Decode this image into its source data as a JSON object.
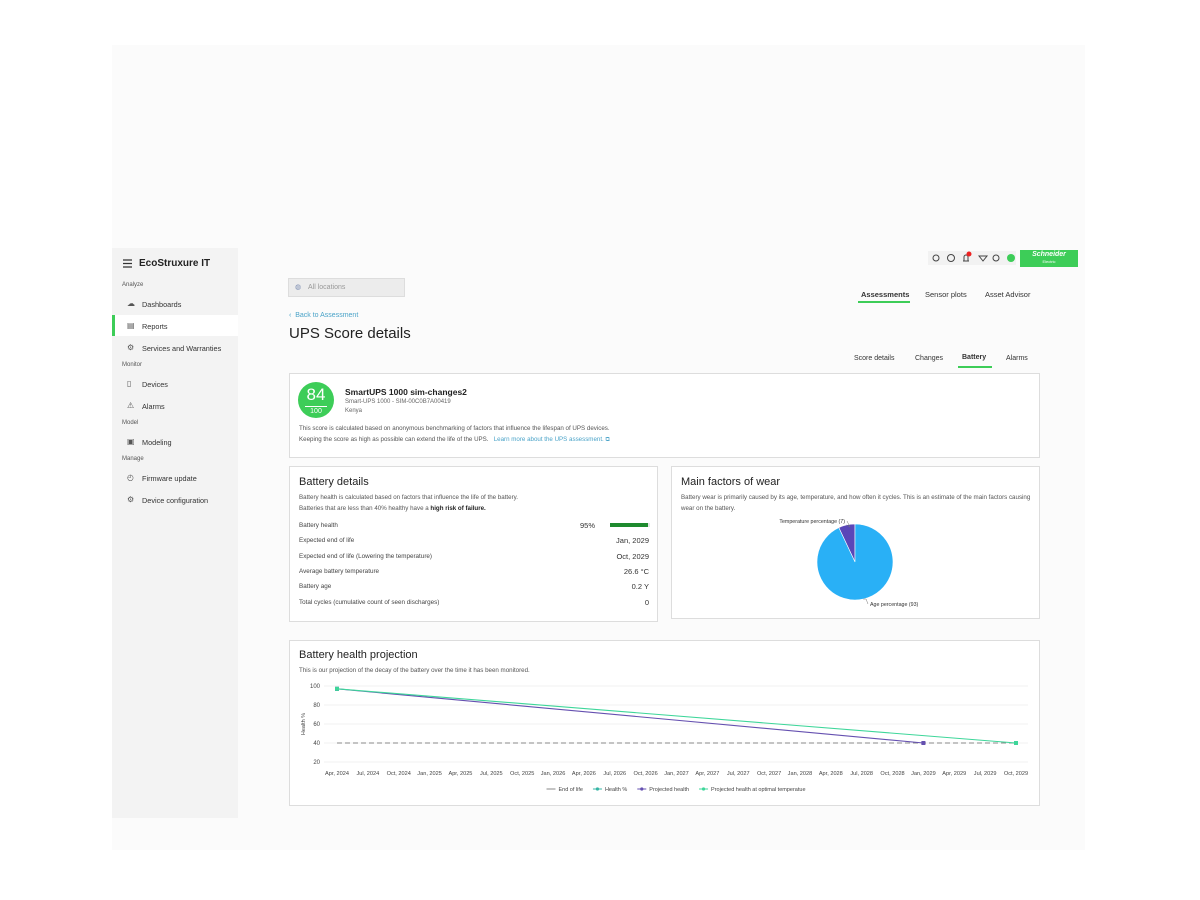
{
  "sidebar": {
    "brand": "EcoStruxure IT",
    "sections": [
      {
        "title": "Analyze",
        "items": [
          "Dashboards",
          "Reports",
          "Services and Warranties"
        ]
      },
      {
        "title": "Monitor",
        "items": [
          "Devices",
          "Alarms"
        ]
      },
      {
        "title": "Model",
        "items": [
          "Modeling"
        ]
      },
      {
        "title": "Manage",
        "items": [
          "Firmware update",
          "Device configuration"
        ]
      }
    ]
  },
  "header": {
    "location_filter": "All locations",
    "tabs": [
      "Assessments",
      "Sensor plots",
      "Asset Advisor"
    ],
    "logo": [
      "Schneider",
      "Electric"
    ]
  },
  "page": {
    "back_link": "Back to Assessment",
    "title": "UPS Score details",
    "subtabs": [
      "Score details",
      "Changes",
      "Battery",
      "Alarms"
    ]
  },
  "score_card": {
    "score": 84,
    "max": 100,
    "device_name": "SmartUPS 1000 sim-changes2",
    "model": "Smart-UPS 1000 - SIM-00C0B7A00419",
    "location": "Kenya",
    "description": [
      "This score is calculated based on anonymous benchmarking of factors that influence the lifespan of UPS devices.",
      "Keeping the score as high as possible can extend the life of the UPS."
    ],
    "link": "Learn more about the UPS assessment."
  },
  "battery_details": {
    "title": "Battery details",
    "description": [
      "Battery health is calculated based on factors that influence the life of the battery.",
      "Batteries that are less than 40% healthy have a",
      "high risk of failure."
    ],
    "rows": [
      {
        "label": "Battery health",
        "value": 95,
        "value_label": "95%"
      },
      {
        "label": "Expected end of life",
        "value": "Jan, 2029"
      },
      {
        "label": "Expected end of life (Lowering the temperature)",
        "value": "Oct, 2029"
      },
      {
        "label": "Average battery temperature",
        "value": "26.6 °C"
      },
      {
        "label": "Battery age",
        "value": "0.2 Y"
      },
      {
        "label": "Total cycles (cumulative count of seen discharges)",
        "value": "0"
      }
    ]
  },
  "chart_data": [
    {
      "type": "pie",
      "title": "Main factors of wear",
      "subtitle": "Battery wear is primarily caused by its age, temperature, and how often it cycles. This is an estimate of the main factors causing wear on the battery.",
      "categories": [
        "Temperature percentage (7)",
        "Age percentage (93)"
      ],
      "values": [
        7,
        93
      ],
      "colors": [
        "#5a47b8",
        "#29b0f6"
      ]
    },
    {
      "type": "line",
      "title": "Battery health projection",
      "subtitle": "This is our projection of the decay of the battery over the time it has been monitored.",
      "ylabel": "Health %",
      "categories": [
        "Apr, 2024",
        "Jul, 2024",
        "Oct, 2024",
        "Jan, 2025",
        "Apr, 2025",
        "Jul, 2025",
        "Oct, 2025",
        "Jan, 2026",
        "Apr, 2026",
        "Jul, 2026",
        "Oct, 2026",
        "Jan, 2027",
        "Apr, 2027",
        "Jul, 2027",
        "Oct, 2027",
        "Jan, 2028",
        "Apr, 2028",
        "Jul, 2028",
        "Oct, 2028",
        "Jan, 2029",
        "Apr, 2029",
        "Jul, 2029",
        "Oct, 2029"
      ],
      "ylim": [
        20,
        100
      ],
      "yticks": [
        20,
        40,
        60,
        80,
        100
      ],
      "grid": true,
      "legend": "bottom",
      "series": [
        {
          "name": "End of life",
          "color": "#8a8a8a",
          "dashed": true,
          "x": [
            "Apr, 2024",
            "Oct, 2029"
          ],
          "values": [
            40,
            40
          ]
        },
        {
          "name": "Health %",
          "color": "#35b5a5",
          "dashed": false,
          "x": [
            "Apr, 2024"
          ],
          "values": [
            97
          ]
        },
        {
          "name": "Projected health",
          "color": "#6550b0",
          "dashed": false,
          "x": [
            "Apr, 2024",
            "Jan, 2029"
          ],
          "values": [
            97,
            40
          ]
        },
        {
          "name": "Projected health at optimal temperatue",
          "color": "#3ed69a",
          "dashed": false,
          "x": [
            "Apr, 2024",
            "Oct, 2029"
          ],
          "values": [
            97,
            40
          ]
        }
      ]
    }
  ]
}
